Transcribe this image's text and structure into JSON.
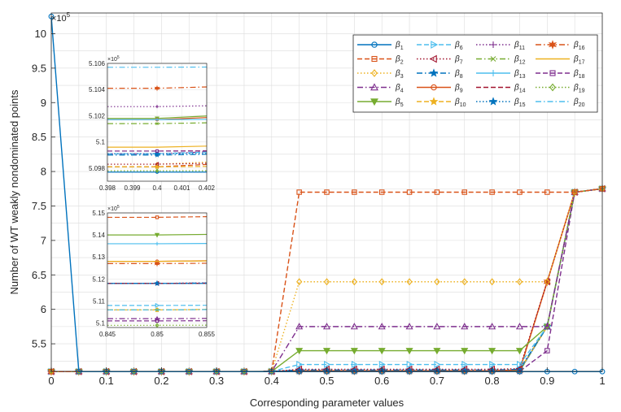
{
  "chart_data": {
    "type": "line",
    "xlabel": "Corresponding parameter values",
    "ylabel": "Number of WT weakly nondominated points",
    "y_exponent": "×10",
    "y_exponent_power": "5",
    "xlim": [
      0,
      1
    ],
    "ylim": [
      5.1,
      10.3
    ],
    "x": [
      0,
      0.05,
      0.1,
      0.15,
      0.2,
      0.25,
      0.3,
      0.35,
      0.4,
      0.45,
      0.5,
      0.55,
      0.6,
      0.65,
      0.7,
      0.75,
      0.8,
      0.85,
      0.9,
      0.95,
      1
    ],
    "xticks": [
      "0",
      "0.1",
      "0.2",
      "0.3",
      "0.4",
      "0.5",
      "0.6",
      "0.7",
      "0.8",
      "0.9",
      "1"
    ],
    "yticks": [
      "5.5",
      "6",
      "6.5",
      "7",
      "7.5",
      "8",
      "8.5",
      "9",
      "9.5",
      "10"
    ],
    "grid": true,
    "legend": {
      "placement": "top-right",
      "columns": 4
    },
    "series": [
      {
        "name": "β",
        "sub": "1",
        "color": "#0072BD",
        "dash": "solid",
        "marker": "o",
        "values": [
          10.25,
          5.097,
          5.097,
          5.097,
          5.097,
          5.097,
          5.097,
          5.097,
          5.097,
          5.097,
          5.097,
          5.097,
          5.097,
          5.097,
          5.097,
          5.097,
          5.097,
          5.097,
          5.097,
          5.097,
          5.097
        ]
      },
      {
        "name": "β",
        "sub": "2",
        "color": "#D95319",
        "dash": "dash",
        "marker": "s",
        "values": [
          5.097,
          5.097,
          5.097,
          5.097,
          5.097,
          5.097,
          5.097,
          5.097,
          5.099,
          7.7,
          7.7,
          7.7,
          7.7,
          7.7,
          7.7,
          7.7,
          7.7,
          7.7,
          7.7,
          7.7,
          7.75
        ]
      },
      {
        "name": "β",
        "sub": "3",
        "color": "#EDB120",
        "dash": "dot",
        "marker": "d",
        "values": [
          5.097,
          5.097,
          5.097,
          5.097,
          5.097,
          5.097,
          5.097,
          5.097,
          5.099,
          6.4,
          6.4,
          6.4,
          6.4,
          6.4,
          6.4,
          6.4,
          6.4,
          6.4,
          6.4,
          7.7,
          7.75
        ]
      },
      {
        "name": "β",
        "sub": "4",
        "color": "#7E2F8E",
        "dash": "dashdot",
        "marker": "^",
        "values": [
          5.097,
          5.097,
          5.097,
          5.097,
          5.097,
          5.097,
          5.097,
          5.097,
          5.099,
          5.75,
          5.75,
          5.75,
          5.75,
          5.75,
          5.75,
          5.75,
          5.75,
          5.75,
          5.75,
          7.7,
          7.75
        ]
      },
      {
        "name": "β",
        "sub": "5",
        "color": "#77AC30",
        "dash": "solid",
        "marker": "v",
        "values": [
          5.097,
          5.097,
          5.097,
          5.097,
          5.097,
          5.097,
          5.097,
          5.097,
          5.099,
          5.4,
          5.4,
          5.4,
          5.4,
          5.4,
          5.4,
          5.4,
          5.4,
          5.4,
          5.75,
          7.7,
          7.75
        ]
      },
      {
        "name": "β",
        "sub": "6",
        "color": "#4DBEEE",
        "dash": "dash",
        "marker": ">",
        "values": [
          5.097,
          5.097,
          5.097,
          5.097,
          5.097,
          5.097,
          5.097,
          5.097,
          5.099,
          5.2,
          5.2,
          5.2,
          5.2,
          5.2,
          5.2,
          5.2,
          5.2,
          5.2,
          5.75,
          7.7,
          7.75
        ]
      },
      {
        "name": "β",
        "sub": "7",
        "color": "#A2142F",
        "dash": "dot",
        "marker": "<",
        "values": [
          5.097,
          5.097,
          5.097,
          5.097,
          5.097,
          5.097,
          5.097,
          5.097,
          5.099,
          5.13,
          5.13,
          5.13,
          5.13,
          5.13,
          5.13,
          5.13,
          5.13,
          5.14,
          6.4,
          7.7,
          7.75
        ]
      },
      {
        "name": "β",
        "sub": "8",
        "color": "#0072BD",
        "dash": "dashdot",
        "marker": "p",
        "values": [
          5.097,
          5.097,
          5.097,
          5.097,
          5.097,
          5.097,
          5.097,
          5.097,
          5.099,
          5.12,
          5.12,
          5.12,
          5.12,
          5.12,
          5.12,
          5.12,
          5.12,
          5.13,
          5.75,
          7.7,
          7.75
        ]
      },
      {
        "name": "β",
        "sub": "9",
        "color": "#D95319",
        "dash": "solid",
        "marker": "o",
        "values": [
          5.097,
          5.097,
          5.097,
          5.097,
          5.097,
          5.097,
          5.097,
          5.097,
          5.099,
          5.11,
          5.11,
          5.11,
          5.11,
          5.11,
          5.11,
          5.11,
          5.11,
          5.12,
          6.4,
          7.7,
          7.75
        ]
      },
      {
        "name": "β",
        "sub": "10",
        "color": "#EDB120",
        "dash": "dash",
        "marker": "*",
        "values": [
          5.097,
          5.097,
          5.097,
          5.097,
          5.097,
          5.097,
          5.097,
          5.097,
          5.099,
          5.11,
          5.11,
          5.11,
          5.11,
          5.11,
          5.11,
          5.11,
          5.11,
          5.12,
          5.75,
          7.7,
          7.75
        ]
      },
      {
        "name": "β",
        "sub": "11",
        "color": "#7E2F8E",
        "dash": "dot",
        "marker": "+",
        "values": [
          5.097,
          5.097,
          5.097,
          5.097,
          5.097,
          5.097,
          5.097,
          5.097,
          5.099,
          5.11,
          5.11,
          5.11,
          5.11,
          5.11,
          5.11,
          5.11,
          5.11,
          5.12,
          5.75,
          7.7,
          7.75
        ]
      },
      {
        "name": "β",
        "sub": "12",
        "color": "#77AC30",
        "dash": "dashdot",
        "marker": "x",
        "values": [
          5.097,
          5.097,
          5.097,
          5.097,
          5.097,
          5.097,
          5.097,
          5.097,
          5.099,
          5.105,
          5.105,
          5.105,
          5.105,
          5.105,
          5.105,
          5.105,
          5.105,
          5.11,
          5.75,
          7.7,
          7.75
        ]
      },
      {
        "name": "β",
        "sub": "13",
        "color": "#4DBEEE",
        "dash": "solid",
        "marker": "+",
        "values": [
          5.097,
          5.097,
          5.097,
          5.097,
          5.097,
          5.097,
          5.097,
          5.097,
          5.099,
          5.105,
          5.105,
          5.105,
          5.105,
          5.105,
          5.105,
          5.105,
          5.105,
          5.11,
          5.75,
          7.7,
          7.75
        ]
      },
      {
        "name": "β",
        "sub": "14",
        "color": "#A2142F",
        "dash": "dash",
        "marker": "none",
        "values": [
          5.097,
          5.097,
          5.097,
          5.097,
          5.097,
          5.097,
          5.097,
          5.097,
          5.099,
          5.105,
          5.105,
          5.105,
          5.105,
          5.105,
          5.105,
          5.105,
          5.105,
          5.11,
          5.75,
          7.7,
          7.75
        ]
      },
      {
        "name": "β",
        "sub": "15",
        "color": "#0072BD",
        "dash": "dot",
        "marker": "*",
        "values": [
          5.097,
          5.097,
          5.097,
          5.097,
          5.097,
          5.097,
          5.097,
          5.097,
          5.099,
          5.105,
          5.105,
          5.105,
          5.105,
          5.105,
          5.105,
          5.105,
          5.105,
          5.11,
          5.75,
          7.7,
          7.75
        ]
      },
      {
        "name": "β",
        "sub": "16",
        "color": "#D95319",
        "dash": "dashdot",
        "marker": "h",
        "values": [
          5.097,
          5.097,
          5.097,
          5.097,
          5.097,
          5.097,
          5.097,
          5.097,
          5.099,
          5.105,
          5.105,
          5.105,
          5.105,
          5.105,
          5.105,
          5.105,
          5.105,
          5.11,
          6.4,
          7.7,
          7.75
        ]
      },
      {
        "name": "β",
        "sub": "17",
        "color": "#EDB120",
        "dash": "solid",
        "marker": "none",
        "values": [
          5.097,
          5.097,
          5.097,
          5.097,
          5.097,
          5.097,
          5.097,
          5.097,
          5.099,
          5.105,
          5.105,
          5.105,
          5.105,
          5.105,
          5.105,
          5.105,
          5.105,
          5.11,
          6.4,
          7.7,
          7.75
        ]
      },
      {
        "name": "β",
        "sub": "18",
        "color": "#7E2F8E",
        "dash": "dash",
        "marker": "s",
        "values": [
          5.097,
          5.097,
          5.097,
          5.097,
          5.097,
          5.097,
          5.097,
          5.097,
          5.099,
          5.1,
          5.1,
          5.1,
          5.1,
          5.1,
          5.1,
          5.1,
          5.1,
          5.1,
          5.4,
          7.7,
          7.75
        ]
      },
      {
        "name": "β",
        "sub": "19",
        "color": "#77AC30",
        "dash": "dot",
        "marker": "d",
        "values": [
          5.097,
          5.097,
          5.097,
          5.097,
          5.097,
          5.097,
          5.097,
          5.097,
          5.099,
          5.1,
          5.1,
          5.1,
          5.1,
          5.1,
          5.1,
          5.1,
          5.1,
          5.1,
          5.75,
          7.7,
          7.75
        ]
      },
      {
        "name": "β",
        "sub": "20",
        "color": "#4DBEEE",
        "dash": "dashdot",
        "marker": "none",
        "values": [
          5.097,
          5.097,
          5.097,
          5.097,
          5.097,
          5.097,
          5.097,
          5.097,
          5.099,
          5.1,
          5.1,
          5.1,
          5.1,
          5.1,
          5.1,
          5.1,
          5.1,
          5.1,
          5.75,
          7.7,
          7.75
        ]
      }
    ],
    "insets": [
      {
        "xlim": [
          0.398,
          0.402
        ],
        "ylim": [
          5.097,
          5.106
        ],
        "xticks": [
          "0.398",
          "0.399",
          "0.4",
          "0.401",
          "0.402"
        ],
        "yticks": [
          "5.098",
          "5.1",
          "5.102",
          "5.104",
          "5.106"
        ],
        "y_exponent": "×10",
        "y_exponent_power": "5"
      },
      {
        "xlim": [
          0.845,
          0.855
        ],
        "ylim": [
          5.098,
          5.15
        ],
        "xticks": [
          "0.845",
          "0.85",
          "0.855"
        ],
        "yticks": [
          "5.1",
          "5.11",
          "5.12",
          "5.13",
          "5.14",
          "5.15"
        ],
        "y_exponent": "×10",
        "y_exponent_power": "5"
      }
    ]
  }
}
